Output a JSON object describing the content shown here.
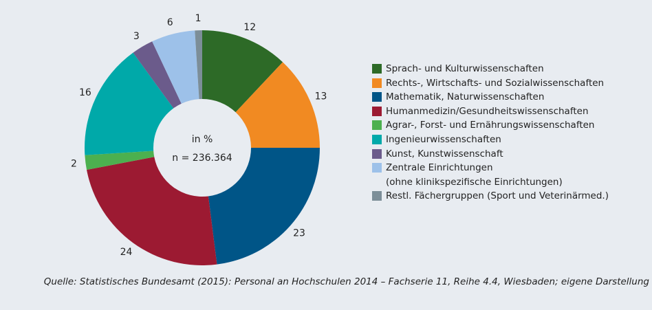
{
  "chart_data": {
    "type": "donut",
    "center_text": [
      "in %",
      "n = 236.364"
    ],
    "categories": [
      "Sprach- und Kulturwissenschaften",
      "Rechts-, Wirtschafts- und Sozialwissenschaften",
      "Mathematik, Naturwissenschaften",
      "Humanmedizin/Gesundheitswissenschaften",
      "Agrar-, Forst- und Ernährungswissenschaften",
      "Ingenieurwissenschaften",
      "Kunst, Kunstwissenschaft",
      "Zentrale Einrichtungen\n(ohne klinikspezifische Einrichtungen)",
      "Restl. Fächergruppen (Sport und Veterinärmed.)"
    ],
    "values": [
      12,
      13,
      23,
      24,
      2,
      16,
      3,
      6,
      1
    ],
    "colors": [
      "#2d6a27",
      "#f18a22",
      "#005587",
      "#9c1a32",
      "#4cb04f",
      "#00a9a9",
      "#6b5b8b",
      "#9dc1e9",
      "#7c8e98"
    ],
    "legend": "right",
    "source": "Quelle: Statistisches Bundesamt (2015): Personal an Hochschulen 2014 – Fachserie 11, Reihe 4.4, Wiesbaden; eigene Darstellung"
  }
}
